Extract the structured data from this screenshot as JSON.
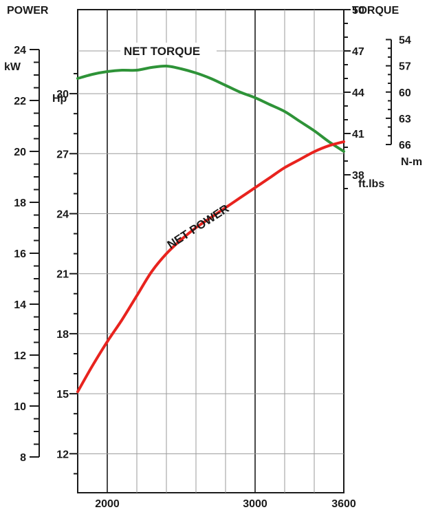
{
  "chart_data": {
    "type": "line",
    "titles": {
      "left": "POWER",
      "right": "TORQUE"
    },
    "x": {
      "ticks": [
        2000,
        3000,
        3600
      ],
      "range": [
        1800,
        3600
      ]
    },
    "axes": {
      "kw": {
        "label": "kW",
        "ticks": [
          8,
          10,
          12,
          14,
          16,
          18,
          20,
          22,
          24
        ],
        "range": [
          7.5,
          25.5
        ]
      },
      "hp": {
        "label": "Hp",
        "ticks": [
          12,
          15,
          18,
          21,
          24,
          27,
          30
        ],
        "range": [
          10.05,
          34.2
        ]
      },
      "ftlbs": {
        "label": "ft.lbs",
        "ticks": [
          38,
          41,
          44,
          47,
          50
        ],
        "range": [
          36.0,
          50.0
        ]
      },
      "nm": {
        "label": "N-m",
        "ticks": [
          54,
          57,
          60,
          63,
          66
        ],
        "range": [
          54,
          66
        ]
      }
    },
    "series": [
      {
        "name": "NET TORQUE",
        "unit": "ft.lbs",
        "color": "#2e9338",
        "x": [
          1800,
          1900,
          2000,
          2100,
          2200,
          2300,
          2400,
          2500,
          2600,
          2700,
          2800,
          2900,
          3000,
          3100,
          3200,
          3300,
          3400,
          3500,
          3600
        ],
        "y": [
          45.0,
          45.3,
          45.5,
          45.6,
          45.6,
          45.8,
          45.9,
          45.7,
          45.4,
          45.0,
          44.5,
          44.0,
          43.6,
          43.1,
          42.6,
          41.9,
          41.2,
          40.4,
          39.7
        ]
      },
      {
        "name": "NET POWER",
        "unit": "Hp",
        "color": "#e8231e",
        "x": [
          1800,
          1900,
          2000,
          2100,
          2200,
          2300,
          2400,
          2500,
          2600,
          2700,
          2800,
          2900,
          3000,
          3100,
          3200,
          3300,
          3400,
          3500,
          3600
        ],
        "y": [
          15.1,
          16.4,
          17.6,
          18.7,
          19.9,
          21.1,
          22.0,
          22.7,
          23.3,
          23.8,
          24.3,
          24.8,
          25.3,
          25.8,
          26.3,
          26.7,
          27.1,
          27.4,
          27.6
        ]
      }
    ],
    "grid": true
  }
}
